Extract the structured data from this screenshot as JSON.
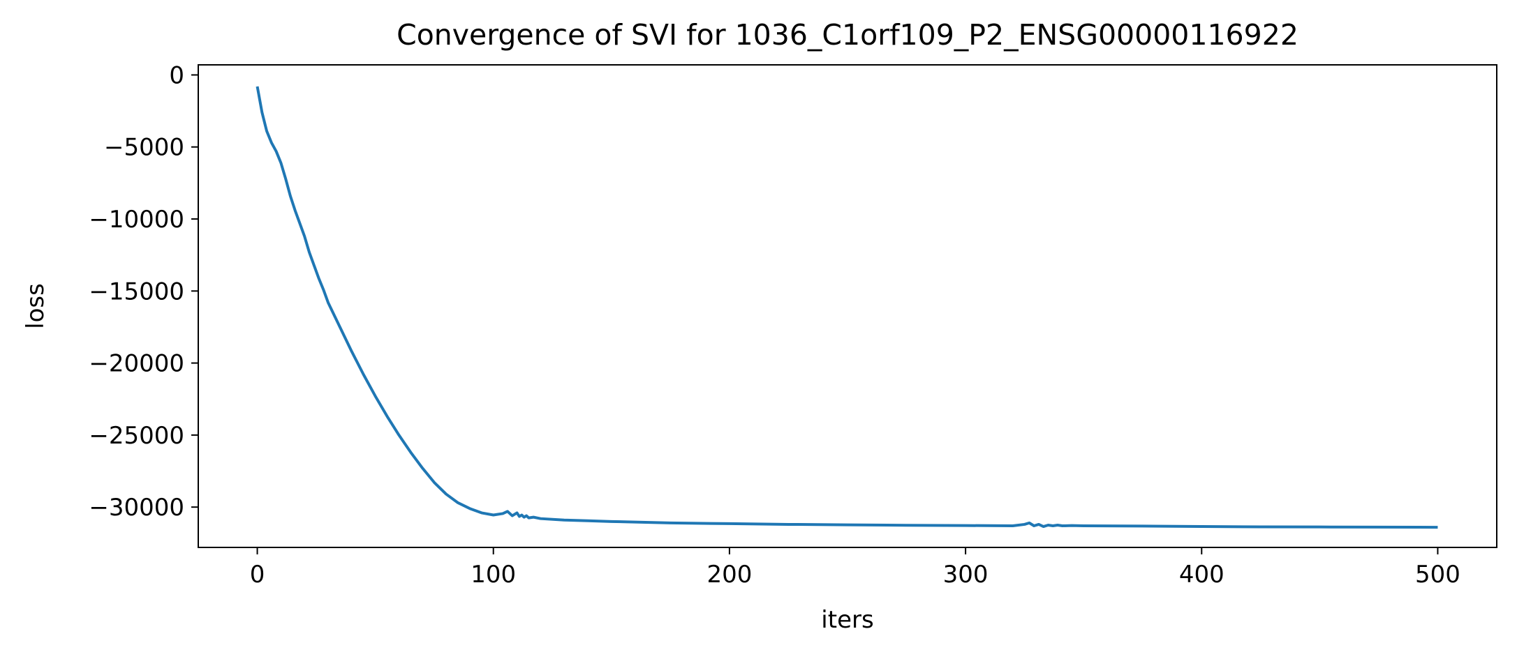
{
  "chart_data": {
    "type": "line",
    "title": "Convergence of SVI for 1036_C1orf109_P2_ENSG00000116922",
    "xlabel": "iters",
    "ylabel": "loss",
    "xlim": [
      -25,
      525
    ],
    "ylim": [
      -32800,
      700
    ],
    "xticks": [
      0,
      100,
      200,
      300,
      400,
      500
    ],
    "yticks": [
      0,
      -5000,
      -10000,
      -15000,
      -20000,
      -25000,
      -30000
    ],
    "xtick_labels": [
      "0",
      "100",
      "200",
      "300",
      "400",
      "500"
    ],
    "ytick_labels": [
      "0",
      "−5000",
      "−10000",
      "−15000",
      "−20000",
      "−25000",
      "−30000"
    ],
    "grid": false,
    "legend": false,
    "series": [
      {
        "color": "#1f77b4",
        "x": [
          0,
          2,
          4,
          6,
          8,
          10,
          12,
          14,
          16,
          18,
          20,
          22,
          24,
          26,
          28,
          30,
          35,
          40,
          45,
          50,
          55,
          60,
          65,
          70,
          75,
          80,
          85,
          90,
          95,
          100,
          104,
          106,
          107,
          108,
          110,
          111,
          112,
          113,
          114,
          115,
          117,
          120,
          130,
          140,
          150,
          175,
          200,
          225,
          250,
          275,
          300,
          320,
          325,
          327,
          329,
          331,
          333,
          335,
          337,
          339,
          341,
          345,
          350,
          375,
          400,
          425,
          450,
          475,
          500
        ],
        "y": [
          -800,
          -2600,
          -3900,
          -4700,
          -5300,
          -6100,
          -7200,
          -8400,
          -9400,
          -10300,
          -11200,
          -12300,
          -13200,
          -14100,
          -14900,
          -15800,
          -17500,
          -19200,
          -20800,
          -22300,
          -23700,
          -25000,
          -26200,
          -27300,
          -28300,
          -29100,
          -29700,
          -30100,
          -30400,
          -30550,
          -30450,
          -30300,
          -30450,
          -30600,
          -30400,
          -30650,
          -30550,
          -30700,
          -30600,
          -30750,
          -30700,
          -30800,
          -30900,
          -30950,
          -31000,
          -31100,
          -31150,
          -31200,
          -31230,
          -31260,
          -31280,
          -31300,
          -31200,
          -31100,
          -31300,
          -31200,
          -31350,
          -31250,
          -31300,
          -31250,
          -31300,
          -31280,
          -31300,
          -31320,
          -31350,
          -31370,
          -31380,
          -31390,
          -31400
        ]
      }
    ]
  }
}
